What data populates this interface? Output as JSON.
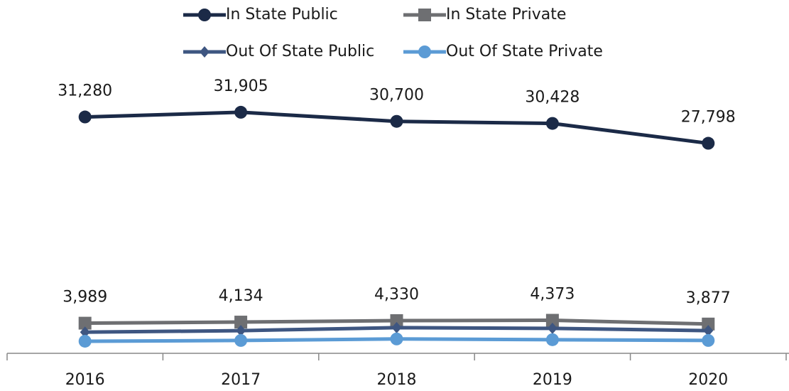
{
  "chart_data": {
    "type": "line",
    "categories": [
      "2016",
      "2017",
      "2018",
      "2019",
      "2020"
    ],
    "ylim": [
      0,
      35000
    ],
    "legend": "top",
    "series": [
      {
        "name": "In State Public",
        "color": "#1b2a47",
        "marker": "circle",
        "values": [
          31280,
          31905,
          30700,
          30428,
          27798
        ],
        "value_labels": [
          "31,280",
          "31,905",
          "30,700",
          "30,428",
          "27,798"
        ]
      },
      {
        "name": "In State Private",
        "color": "#6e6f72",
        "marker": "square",
        "values": [
          3989,
          4134,
          4330,
          4373,
          3877
        ],
        "value_labels": [
          "3,989",
          "4,134",
          "4,330",
          "4,373",
          "3,877"
        ]
      },
      {
        "name": "Out Of State Public",
        "color": "#3e5681",
        "marker": "diamond",
        "values": [
          2800,
          3000,
          3400,
          3300,
          3000
        ]
      },
      {
        "name": "Out Of State Private",
        "color": "#5b9bd5",
        "marker": "circle",
        "values": [
          1600,
          1700,
          1900,
          1800,
          1700
        ]
      }
    ]
  }
}
